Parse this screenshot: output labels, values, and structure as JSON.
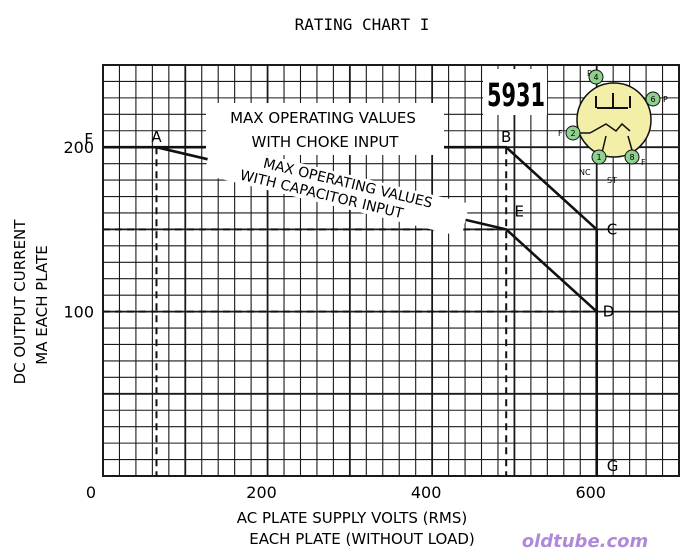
{
  "chart_data": {
    "type": "line",
    "title": "RATING CHART I",
    "tube_type": "5931",
    "xlabel_line1": "AC PLATE SUPPLY VOLTS (RMS)",
    "xlabel_line2": "EACH PLATE (WITHOUT LOAD)",
    "ylabel_line1": "DC OUTPUT CURRENT",
    "ylabel_line2": "MA EACH PLATE",
    "xlim": [
      0,
      700
    ],
    "ylim": [
      0,
      250
    ],
    "grid": true,
    "x_ticks": [
      {
        "value": 0,
        "label": "0"
      },
      {
        "value": 200,
        "label": "200"
      },
      {
        "value": 400,
        "label": "400"
      },
      {
        "value": 600,
        "label": "600"
      }
    ],
    "y_ticks": [
      {
        "value": 100,
        "label": "100"
      },
      {
        "value": 200,
        "label": "200"
      }
    ],
    "points": [
      {
        "label": "F",
        "x": 0,
        "y": 200
      },
      {
        "label": "A",
        "x": 65,
        "y": 200
      },
      {
        "label": "B",
        "x": 490,
        "y": 200
      },
      {
        "label": "E",
        "x": 490,
        "y": 150
      },
      {
        "label": "C",
        "x": 600,
        "y": 150
      },
      {
        "label": "D",
        "x": 600,
        "y": 100
      },
      {
        "label": "G",
        "x": 600,
        "y": 0
      }
    ],
    "series": [
      {
        "name": "MAX OPERATING VALUES WITH CHOKE INPUT",
        "points": [
          [
            0,
            200
          ],
          [
            490,
            200
          ],
          [
            600,
            150
          ],
          [
            600,
            0
          ]
        ]
      },
      {
        "name": "MAX OPERATING VALUES WITH CAPACITOR INPUT",
        "points": [
          [
            0,
            200
          ],
          [
            65,
            200
          ],
          [
            490,
            150
          ],
          [
            600,
            100
          ],
          [
            600,
            0
          ]
        ]
      }
    ],
    "annotations": {
      "choke_line1": "MAX OPERATING VALUES",
      "choke_line2": "WITH CHOKE INPUT",
      "cap_line1": "MAX OPERATING VALUES",
      "cap_line2": "WITH CAPACITOR INPUT"
    },
    "pin_diagram": {
      "pins": [
        "P",
        "4",
        "6",
        "P",
        "F",
        "2",
        "1",
        "8",
        "F"
      ],
      "bottom_labels": [
        "NC",
        "ST"
      ]
    },
    "colors": {
      "line": "#111111",
      "grid": "#1a1a1a",
      "diagram_fill": "#f3efa8",
      "pin_fill": "#8fd08f"
    }
  },
  "watermark": "oldtube.com"
}
